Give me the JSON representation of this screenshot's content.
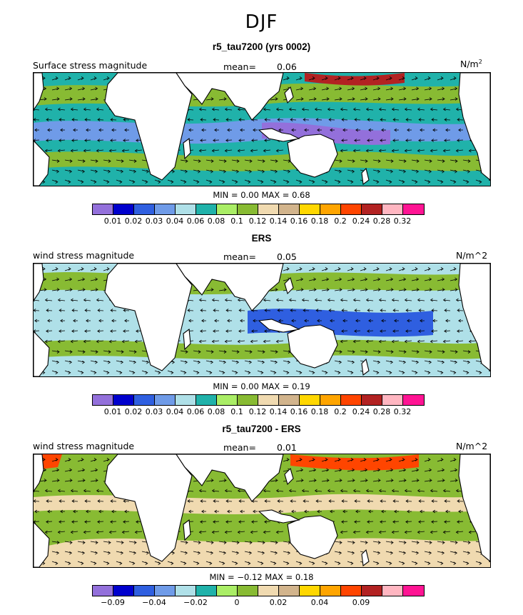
{
  "season": "DJF",
  "palette": [
    "#9370db",
    "#0000cd",
    "#2f5fe0",
    "#6f9be8",
    "#afe0e8",
    "#20b2aa",
    "#aaee66",
    "#88bb33",
    "#f0dab0",
    "#d2b48c",
    "#ffd700",
    "#ffa500",
    "#ff4500",
    "#b22222",
    "#ffb6c1",
    "#ff1493"
  ],
  "land_color": "#ffffff",
  "panels": [
    {
      "title": "r5_tau7200 (yrs 0002)",
      "field_label": "Surface stress magnitude",
      "mean_label": "mean=",
      "mean_value": "0.06",
      "units": "N/m",
      "units_sup": "2",
      "min_label": "MIN =",
      "min_value": "0.00",
      "max_label": "MAX =",
      "max_value": "0.68",
      "tick_labels": [
        "0.01",
        "0.02",
        "0.03",
        "0.04",
        "0.06",
        "0.08",
        "0.1",
        "0.12",
        "0.14",
        "0.16",
        "0.18",
        "0.2",
        "0.24",
        "0.28",
        "0.32"
      ],
      "dominant_level_index": 5
    },
    {
      "title": "ERS",
      "field_label": "wind stress magnitude",
      "mean_label": "mean=",
      "mean_value": "0.05",
      "units": "N/m^2",
      "units_sup": "",
      "min_label": "MIN =",
      "min_value": "0.00",
      "max_label": "MAX =",
      "max_value": "0.19",
      "tick_labels": [
        "0.01",
        "0.02",
        "0.03",
        "0.04",
        "0.06",
        "0.08",
        "0.1",
        "0.12",
        "0.14",
        "0.16",
        "0.18",
        "0.2",
        "0.24",
        "0.28",
        "0.32"
      ],
      "dominant_level_index": 4
    },
    {
      "title": "r5_tau7200 - ERS",
      "field_label": "wind stress magnitude",
      "mean_label": "mean=",
      "mean_value": "0.01",
      "units": "N/m^2",
      "units_sup": "",
      "min_label": "MIN =",
      "min_value": "−0.12",
      "max_label": "MAX =",
      "max_value": "0.18",
      "tick_labels": [
        "−0.09",
        "−0.04",
        "−0.02",
        "0",
        "0.02",
        "0.04",
        "0.09"
      ],
      "tick_boundaries": [
        1,
        3,
        5,
        7,
        9,
        11,
        13
      ],
      "dominant_level_index": 7
    }
  ]
}
